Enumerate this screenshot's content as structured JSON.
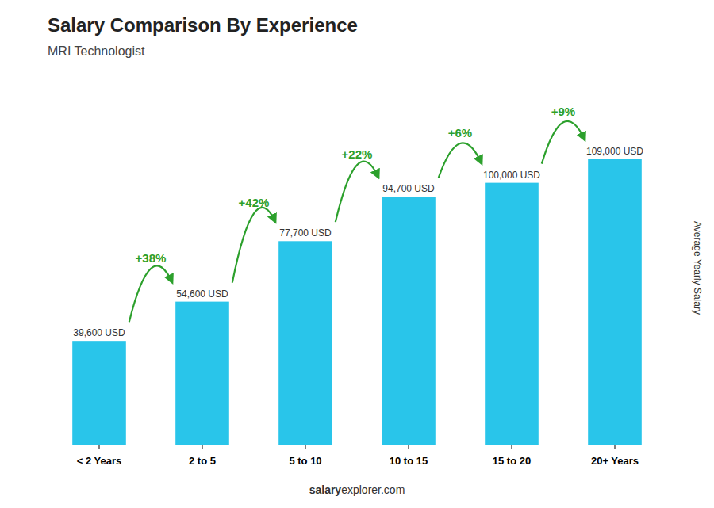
{
  "chart_data": {
    "type": "bar",
    "title": "Salary Comparison By Experience",
    "subtitle": "MRI Technologist",
    "ylabel": "Average Yearly Salary",
    "categories": [
      "< 2 Years",
      "2 to 5",
      "5 to 10",
      "10 to 15",
      "15 to 20",
      "20+ Years"
    ],
    "values": [
      39600,
      54600,
      77700,
      94700,
      100000,
      109000
    ],
    "value_labels": [
      "39,600 USD",
      "54,600 USD",
      "77,700 USD",
      "94,700 USD",
      "100,000 USD",
      "109,000 USD"
    ],
    "data_labels": true,
    "color": "#29C5EA",
    "ylim": [
      0,
      135000
    ],
    "tick_labels": "x",
    "annotations": [
      "+38%",
      "+42%",
      "+22%",
      "+6%",
      "+9%"
    ],
    "footer": [
      "salary",
      "explorer.com"
    ]
  }
}
